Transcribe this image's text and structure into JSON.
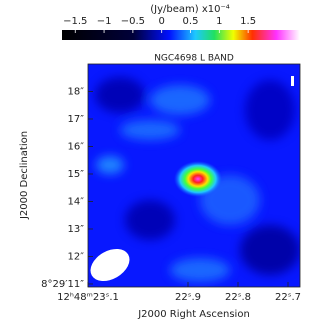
{
  "chart_data": {
    "type": "image",
    "title": "NGC4698 L BAND",
    "colorbar_label": "(Jy/beam)",
    "colorbar_scale": "x10⁻⁴",
    "clim": [
      -1.73,
      2.4
    ],
    "cticks": [
      {
        "value": -1.5,
        "label": "−1.5"
      },
      {
        "value": -1,
        "label": "−1"
      },
      {
        "value": -0.5,
        "label": "−0.5"
      },
      0,
      0.5,
      1,
      1.5
    ],
    "xlabel": "J2000 Right Ascension",
    "ylabel": "J2000 Declination",
    "xlim": [
      23.1,
      22.676
    ],
    "xticks": [
      {
        "value": 23.1,
        "label": "12ʰ48ᵐ23ˢ.1"
      },
      {
        "value": 22.9,
        "label": "22ˢ.9"
      },
      {
        "value": 22.8,
        "label": "22ˢ.8"
      },
      {
        "value": 22.7,
        "label": "22ˢ.7"
      }
    ],
    "ylim": [
      10.89,
      19.0
    ],
    "yticks": [
      {
        "value": 11,
        "label": "8°29′11″"
      },
      {
        "value": 12,
        "label": "12″"
      },
      {
        "value": 13,
        "label": "13″"
      },
      {
        "value": 14,
        "label": "14″"
      },
      {
        "value": 15,
        "label": "15″"
      },
      {
        "value": 16,
        "label": "16″"
      },
      {
        "value": 17,
        "label": "17″"
      },
      {
        "value": 18,
        "label": "18″"
      }
    ]
  }
}
